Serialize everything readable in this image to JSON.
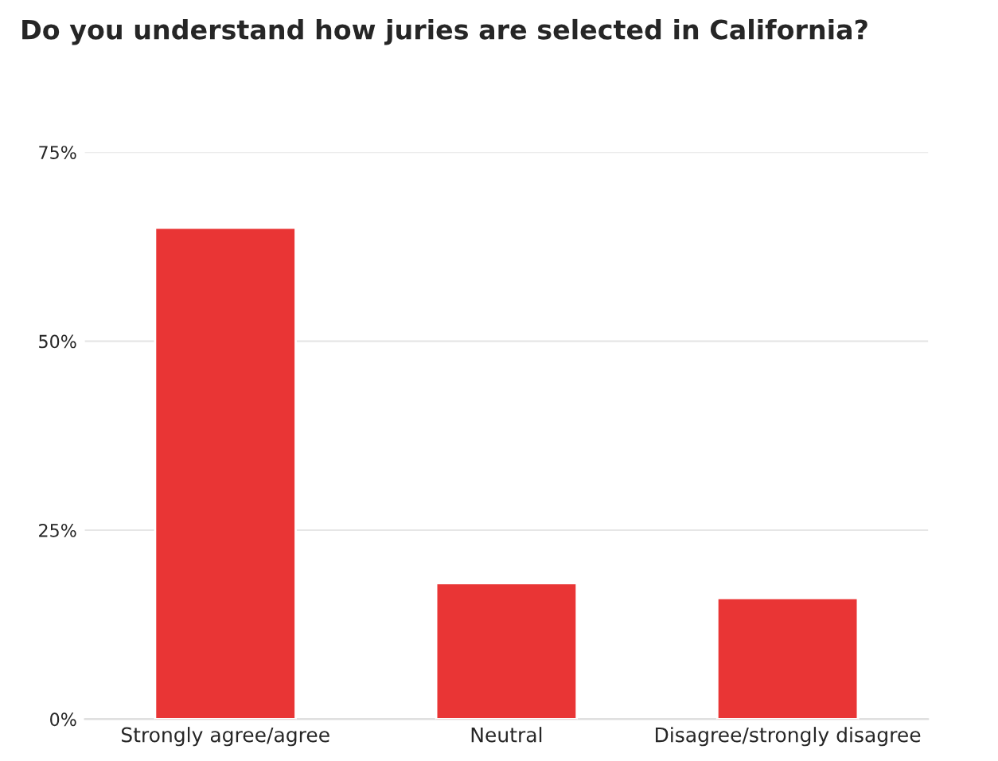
{
  "chart_data": {
    "type": "bar",
    "title": "Do you understand how juries are selected in California?",
    "categories": [
      "Strongly agree/agree",
      "Neutral",
      "Disagree/strongly disagree"
    ],
    "values": [
      65,
      18,
      16
    ],
    "color": "#e93535",
    "ylim": [
      0,
      75
    ],
    "yticks": [
      {
        "value": 0,
        "label": "0%"
      },
      {
        "value": 25,
        "label": "25%"
      },
      {
        "value": 50,
        "label": "50%"
      },
      {
        "value": 75,
        "label": "75%"
      }
    ],
    "grid": "y"
  }
}
